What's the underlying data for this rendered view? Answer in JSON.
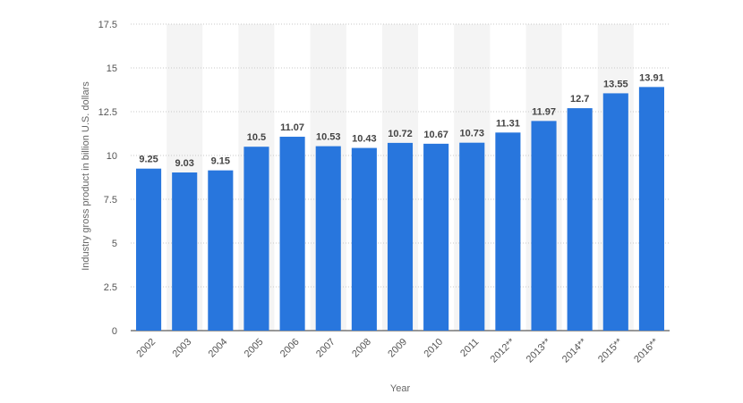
{
  "chart_data": {
    "type": "bar",
    "categories": [
      "2002",
      "2003",
      "2004",
      "2005",
      "2006",
      "2007",
      "2008",
      "2009",
      "2010",
      "2011",
      "2012**",
      "2013**",
      "2014**",
      "2015**",
      "2016**"
    ],
    "values": [
      9.25,
      9.03,
      9.15,
      10.5,
      11.07,
      10.53,
      10.43,
      10.72,
      10.67,
      10.73,
      11.31,
      11.97,
      12.7,
      13.55,
      13.91
    ],
    "data_labels": [
      "9.25",
      "9.03",
      "9.15",
      "10.5",
      "11.07",
      "10.53",
      "10.43",
      "10.72",
      "10.67",
      "10.73",
      "11.31",
      "11.97",
      "12.7",
      "13.55",
      "13.91"
    ],
    "xlabel": "Year",
    "ylabel": "Industry gross product in billion U.S. dollars",
    "ylim": [
      0,
      17.5
    ],
    "yticks": [
      "0",
      "2.5",
      "5",
      "7.5",
      "10",
      "12.5",
      "15",
      "17.5"
    ],
    "grid": true,
    "bar_color": "#2876dd",
    "alt_band_color": "#f4f4f4"
  }
}
